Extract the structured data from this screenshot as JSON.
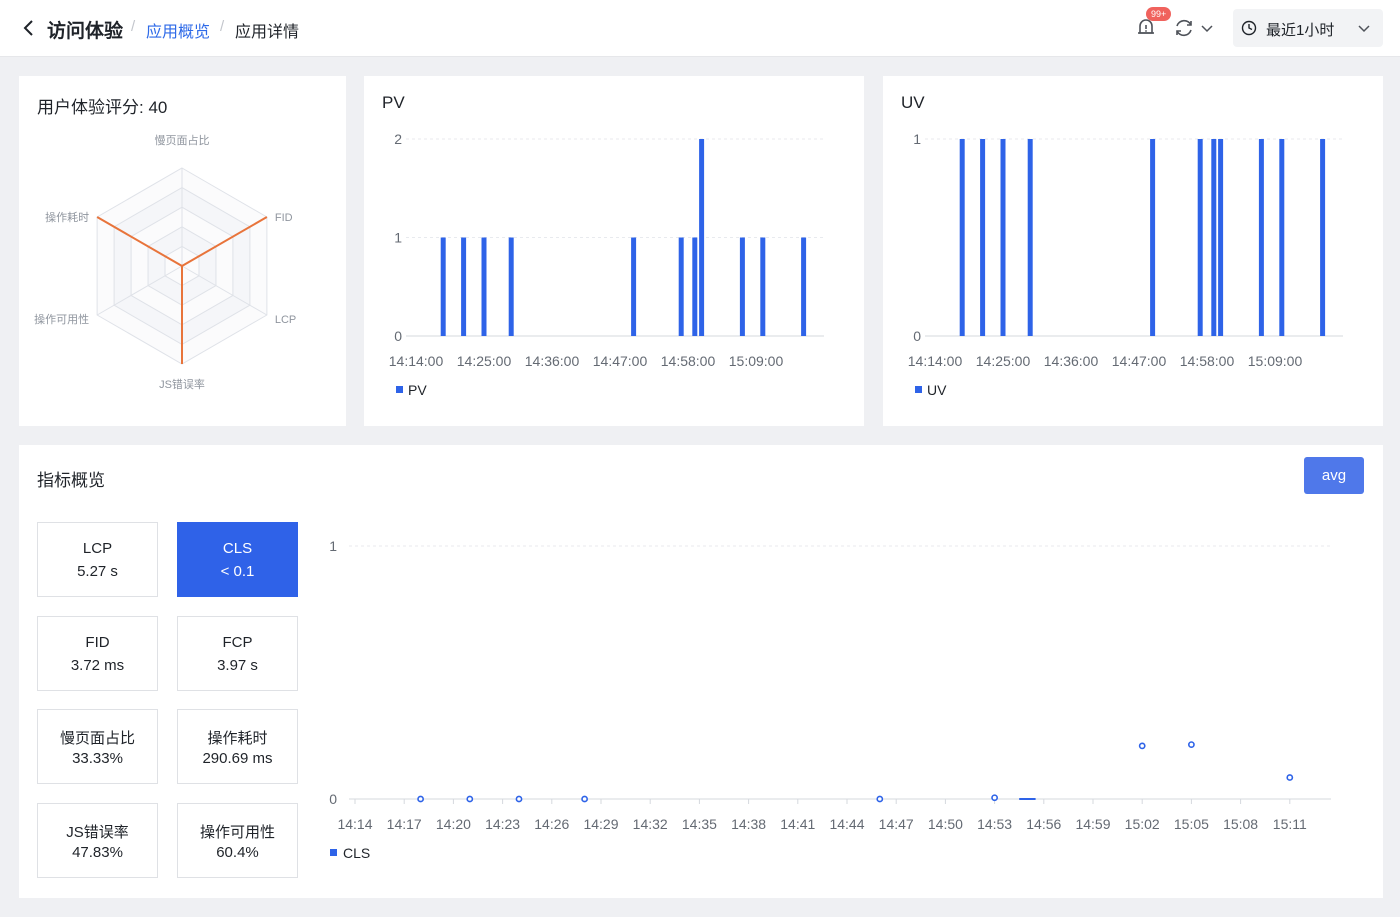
{
  "header": {
    "title": "访问体验",
    "breadcrumb_app": "应用概览",
    "breadcrumb_current": "应用详情",
    "separator": "/",
    "notification_badge": "99+",
    "time_range": "最近1小时"
  },
  "score_card": {
    "title": "用户体验评分: 40",
    "radar_axes": [
      "慢页面占比",
      "FID",
      "LCP",
      "JS错误率",
      "操作可用性",
      "操作耗时"
    ],
    "radar_values": [
      0,
      1,
      0,
      1,
      0,
      1
    ],
    "line_color": "#e8743b"
  },
  "pv_card": {
    "title": "PV",
    "chart_data": {
      "type": "bar",
      "title": "PV",
      "x_ticks": [
        "14:14:00",
        "14:25:00",
        "14:36:00",
        "14:47:00",
        "14:58:00",
        "15:09:00"
      ],
      "x_range_minutes": [
        0,
        60
      ],
      "ylim": [
        0,
        2
      ],
      "y_ticks": [
        "0",
        "1",
        "2"
      ],
      "series": [
        {
          "name": "PV",
          "color": "#2e63e8",
          "points": [
            [
              4.0,
              1
            ],
            [
              7.0,
              1
            ],
            [
              10.0,
              1
            ],
            [
              14.0,
              1
            ],
            [
              32.0,
              1
            ],
            [
              39.0,
              1
            ],
            [
              41.0,
              1
            ],
            [
              42.0,
              2
            ],
            [
              48.0,
              1
            ],
            [
              51.0,
              1
            ],
            [
              57.0,
              1
            ]
          ]
        }
      ],
      "legend": "bottom-left"
    }
  },
  "uv_card": {
    "title": "UV",
    "chart_data": {
      "type": "bar",
      "title": "UV",
      "x_ticks": [
        "14:14:00",
        "14:25:00",
        "14:36:00",
        "14:47:00",
        "14:58:00",
        "15:09:00"
      ],
      "x_range_minutes": [
        0,
        60
      ],
      "ylim": [
        0,
        1
      ],
      "y_ticks": [
        "0",
        "1"
      ],
      "series": [
        {
          "name": "UV",
          "color": "#2e63e8",
          "points": [
            [
              4.0,
              1
            ],
            [
              7.0,
              1
            ],
            [
              10.0,
              1
            ],
            [
              14.0,
              1
            ],
            [
              32.0,
              1
            ],
            [
              39.0,
              1
            ],
            [
              41.0,
              1
            ],
            [
              42.0,
              1
            ],
            [
              48.0,
              1
            ],
            [
              51.0,
              1
            ],
            [
              57.0,
              1
            ]
          ]
        }
      ],
      "legend": "bottom-left"
    }
  },
  "metrics_card": {
    "title": "指标概览",
    "avg_button": "avg",
    "metrics": [
      {
        "name": "LCP",
        "value": "5.27 s",
        "active": false
      },
      {
        "name": "CLS",
        "value": "< 0.1",
        "active": true
      },
      {
        "name": "FID",
        "value": "3.72 ms",
        "active": false
      },
      {
        "name": "FCP",
        "value": "3.97 s",
        "active": false
      },
      {
        "name": "慢页面占比",
        "value": "33.33%",
        "active": false
      },
      {
        "name": "操作耗时",
        "value": "290.69 ms",
        "active": false
      },
      {
        "name": "JS错误率",
        "value": "47.83%",
        "active": false
      },
      {
        "name": "操作可用性",
        "value": "60.4%",
        "active": false
      }
    ]
  },
  "chart_data": {
    "type": "scatter",
    "title": "CLS",
    "x_ticks": [
      "14:14",
      "14:17",
      "14:20",
      "14:23",
      "14:26",
      "14:29",
      "14:32",
      "14:35",
      "14:38",
      "14:41",
      "14:44",
      "14:47",
      "14:50",
      "14:53",
      "14:56",
      "14:59",
      "15:02",
      "15:05",
      "15:08",
      "15:11"
    ],
    "ylim": [
      0,
      1
    ],
    "y_ticks": [
      "0",
      "1"
    ],
    "series": [
      {
        "name": "CLS",
        "color": "#2e63e8",
        "points": [
          [
            4,
            0
          ],
          [
            7,
            0
          ],
          [
            10,
            0
          ],
          [
            14,
            0
          ],
          [
            32,
            0
          ],
          [
            39,
            0.005
          ],
          [
            48,
            0.21
          ],
          [
            51,
            0.215
          ],
          [
            57,
            0.085
          ]
        ]
      }
    ],
    "flat_segment": [
      [
        40.5,
        0
      ],
      [
        41.5,
        0
      ]
    ],
    "legend": "bottom-left"
  }
}
